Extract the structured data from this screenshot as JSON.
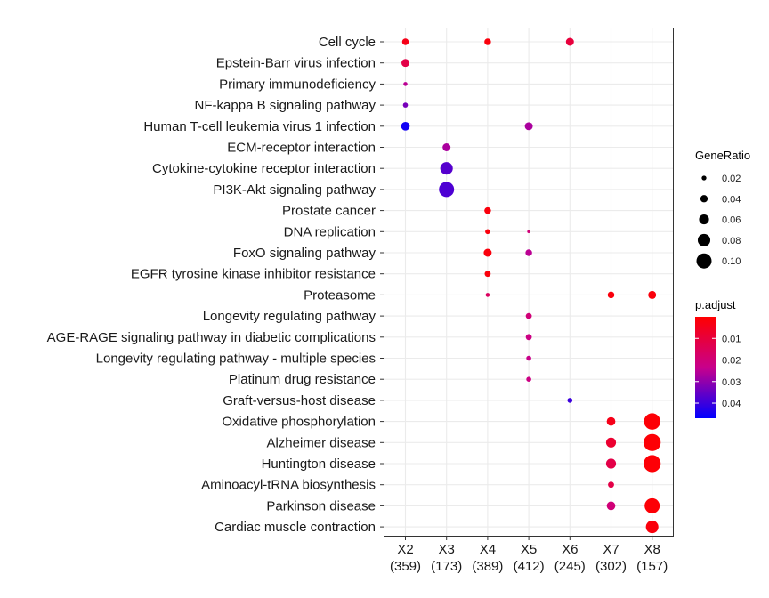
{
  "chart_data": {
    "type": "scatter",
    "title": "",
    "xlabel": "",
    "ylabel": "",
    "x_categories": [
      {
        "label": "X2",
        "count": "(359)"
      },
      {
        "label": "X3",
        "count": "(173)"
      },
      {
        "label": "X4",
        "count": "(389)"
      },
      {
        "label": "X5",
        "count": "(412)"
      },
      {
        "label": "X6",
        "count": "(245)"
      },
      {
        "label": "X7",
        "count": "(302)"
      },
      {
        "label": "X8",
        "count": "(157)"
      }
    ],
    "y_categories": [
      "Cell cycle",
      "Epstein-Barr virus infection",
      "Primary immunodeficiency",
      "NF-kappa B signaling pathway",
      "Human T-cell leukemia virus 1 infection",
      "ECM-receptor interaction",
      "Cytokine-cytokine receptor interaction",
      "PI3K-Akt signaling pathway",
      "Prostate cancer",
      "DNA replication",
      "FoxO signaling pathway",
      "EGFR tyrosine kinase inhibitor resistance",
      "Proteasome",
      "Longevity regulating pathway",
      "AGE-RAGE signaling pathway in diabetic complications",
      "Longevity regulating pathway - multiple species",
      "Platinum drug resistance",
      "Graft-versus-host disease",
      "Oxidative phosphorylation",
      "Alzheimer disease",
      "Huntington disease",
      "Aminoacyl-tRNA biosynthesis",
      "Parkinson disease",
      "Cardiac muscle contraction"
    ],
    "points": [
      {
        "x": "X2",
        "y": "Cell cycle",
        "gene_ratio": 0.035,
        "p_adjust": 0.004
      },
      {
        "x": "X4",
        "y": "Cell cycle",
        "gene_ratio": 0.035,
        "p_adjust": 0.002
      },
      {
        "x": "X6",
        "y": "Cell cycle",
        "gene_ratio": 0.045,
        "p_adjust": 0.01
      },
      {
        "x": "X2",
        "y": "Epstein-Barr virus infection",
        "gene_ratio": 0.045,
        "p_adjust": 0.012
      },
      {
        "x": "X2",
        "y": "Primary immunodeficiency",
        "gene_ratio": 0.015,
        "p_adjust": 0.025
      },
      {
        "x": "X2",
        "y": "NF-kappa B signaling pathway",
        "gene_ratio": 0.022,
        "p_adjust": 0.033
      },
      {
        "x": "X2",
        "y": "Human T-cell leukemia virus 1 infection",
        "gene_ratio": 0.05,
        "p_adjust": 0.045
      },
      {
        "x": "X5",
        "y": "Human T-cell leukemia virus 1 infection",
        "gene_ratio": 0.045,
        "p_adjust": 0.027
      },
      {
        "x": "X3",
        "y": "ECM-receptor interaction",
        "gene_ratio": 0.045,
        "p_adjust": 0.027
      },
      {
        "x": "X3",
        "y": "Cytokine-cytokine receptor interaction",
        "gene_ratio": 0.08,
        "p_adjust": 0.037
      },
      {
        "x": "X3",
        "y": "PI3K-Akt signaling pathway",
        "gene_ratio": 0.1,
        "p_adjust": 0.038
      },
      {
        "x": "X4",
        "y": "Prostate cancer",
        "gene_ratio": 0.035,
        "p_adjust": 0.002
      },
      {
        "x": "X4",
        "y": "DNA replication",
        "gene_ratio": 0.022,
        "p_adjust": 0.002
      },
      {
        "x": "X5",
        "y": "DNA replication",
        "gene_ratio": 0.008,
        "p_adjust": 0.02
      },
      {
        "x": "X4",
        "y": "FoxO signaling pathway",
        "gene_ratio": 0.045,
        "p_adjust": 0.002
      },
      {
        "x": "X5",
        "y": "FoxO signaling pathway",
        "gene_ratio": 0.035,
        "p_adjust": 0.025
      },
      {
        "x": "X4",
        "y": "EGFR tyrosine kinase inhibitor resistance",
        "gene_ratio": 0.03,
        "p_adjust": 0.002
      },
      {
        "x": "X4",
        "y": "Proteasome",
        "gene_ratio": 0.015,
        "p_adjust": 0.016
      },
      {
        "x": "X7",
        "y": "Proteasome",
        "gene_ratio": 0.035,
        "p_adjust": 0.002
      },
      {
        "x": "X8",
        "y": "Proteasome",
        "gene_ratio": 0.045,
        "p_adjust": 0.002
      },
      {
        "x": "X5",
        "y": "Longevity regulating pathway",
        "gene_ratio": 0.03,
        "p_adjust": 0.02
      },
      {
        "x": "X5",
        "y": "AGE-RAGE signaling pathway in diabetic complications",
        "gene_ratio": 0.03,
        "p_adjust": 0.022
      },
      {
        "x": "X5",
        "y": "Longevity regulating pathway - multiple species",
        "gene_ratio": 0.022,
        "p_adjust": 0.023
      },
      {
        "x": "X5",
        "y": "Platinum drug resistance",
        "gene_ratio": 0.022,
        "p_adjust": 0.022
      },
      {
        "x": "X6",
        "y": "Graft-versus-host disease",
        "gene_ratio": 0.022,
        "p_adjust": 0.04
      },
      {
        "x": "X7",
        "y": "Oxidative phosphorylation",
        "gene_ratio": 0.05,
        "p_adjust": 0.004
      },
      {
        "x": "X8",
        "y": "Oxidative phosphorylation",
        "gene_ratio": 0.11,
        "p_adjust": 0.001
      },
      {
        "x": "X7",
        "y": "Alzheimer disease",
        "gene_ratio": 0.06,
        "p_adjust": 0.008
      },
      {
        "x": "X8",
        "y": "Alzheimer disease",
        "gene_ratio": 0.115,
        "p_adjust": 0.001
      },
      {
        "x": "X7",
        "y": "Huntington disease",
        "gene_ratio": 0.06,
        "p_adjust": 0.012
      },
      {
        "x": "X8",
        "y": "Huntington disease",
        "gene_ratio": 0.115,
        "p_adjust": 0.001
      },
      {
        "x": "X7",
        "y": "Aminoacyl-tRNA biosynthesis",
        "gene_ratio": 0.03,
        "p_adjust": 0.012
      },
      {
        "x": "X7",
        "y": "Parkinson disease",
        "gene_ratio": 0.05,
        "p_adjust": 0.02
      },
      {
        "x": "X8",
        "y": "Parkinson disease",
        "gene_ratio": 0.1,
        "p_adjust": 0.001
      },
      {
        "x": "X8",
        "y": "Cardiac muscle contraction",
        "gene_ratio": 0.08,
        "p_adjust": 0.002
      }
    ],
    "size_legend": {
      "title": "GeneRatio",
      "values": [
        0.02,
        0.04,
        0.06,
        0.08,
        0.1
      ],
      "labels": [
        "0.02",
        "0.04",
        "0.06",
        "0.08",
        "0.10"
      ]
    },
    "color_legend": {
      "title": "p.adjust",
      "range": [
        0.0,
        0.047
      ],
      "ticks": [
        0.01,
        0.02,
        0.03,
        0.04
      ],
      "labels": [
        "0.01",
        "0.02",
        "0.03",
        "0.04"
      ],
      "low_color": "#ff0000",
      "high_color": "#0000ff"
    },
    "grid": true,
    "legend_position": "right"
  }
}
